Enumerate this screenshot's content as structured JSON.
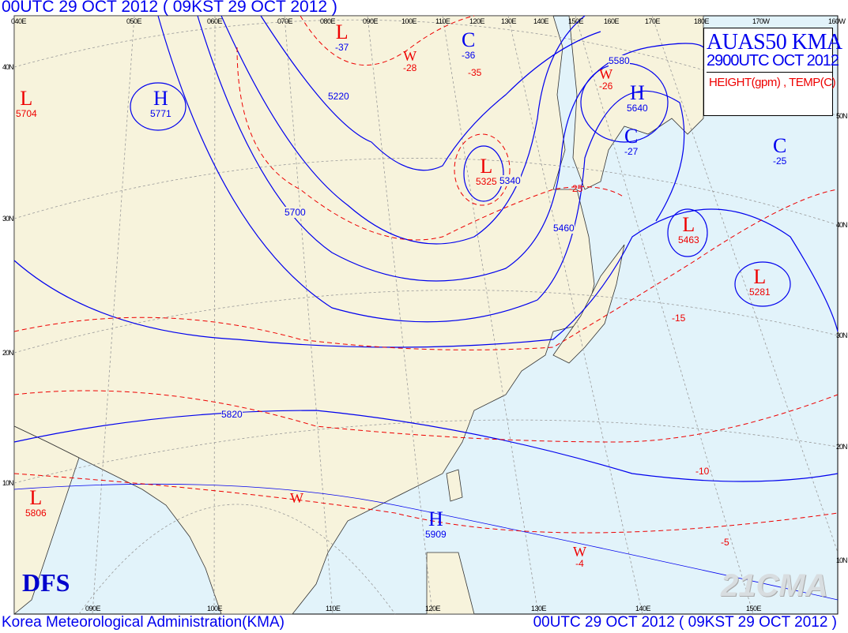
{
  "header": {
    "title": "00UTC 29 OCT 2012 ( 09KST 29 OCT 2012 )"
  },
  "title_box": {
    "product": "AUAS50  KMA",
    "valid": "2900UTC OCT 2012",
    "fields": "HEIGHT(gpm) , TEMP(C)"
  },
  "footer": {
    "agency": "Korea Meteorological Administration(KMA)",
    "time": "00UTC 29 OCT 2012 ( 09KST 29 OCT 2012 )"
  },
  "logo": "DFS",
  "watermark": "21CMA",
  "colors": {
    "land": "#f7f3dc",
    "ocean": "#e2f3fa",
    "height_contour": "#0000ee",
    "temp_contour": "#ee0000"
  },
  "lon_labels_top": [
    "040E",
    "050E",
    "060E",
    "070E",
    "080E",
    "090E",
    "100E",
    "110E",
    "120E",
    "130E",
    "140E",
    "150E",
    "160E",
    "170E",
    "180E",
    "170W",
    "160W"
  ],
  "lon_labels_bottom": [
    "090E",
    "100E",
    "110E",
    "120E",
    "130E",
    "140E",
    "150E"
  ],
  "lat_labels_right": [
    "50N",
    "40N",
    "30N",
    "20N",
    "10N"
  ],
  "lat_labels_left": [
    "40N",
    "30N",
    "20N",
    "10N"
  ],
  "systems": [
    {
      "type": "L",
      "value": "-37",
      "color": "#ee0000",
      "sub_color": "#0000ee"
    },
    {
      "type": "C",
      "value": "-36",
      "color": "#0000ee",
      "sub_color": "#0000ee"
    },
    {
      "type": "W",
      "value": "-28",
      "color": "#ee0000",
      "sub_color": "#ee0000"
    },
    {
      "type": "H",
      "value": "5771",
      "color": "#0000ee",
      "sub_color": "#0000ee"
    },
    {
      "type": "L",
      "value": "5704",
      "color": "#ee0000",
      "sub_color": "#ee0000"
    },
    {
      "type": "W",
      "value": "-26",
      "color": "#ee0000",
      "sub_color": "#ee0000"
    },
    {
      "type": "H",
      "value": "5640",
      "color": "#0000ee",
      "sub_color": "#0000ee"
    },
    {
      "type": "C",
      "value": "-27",
      "color": "#0000ee",
      "sub_color": "#0000ee"
    },
    {
      "type": "C",
      "value": "-25",
      "color": "#0000ee",
      "sub_color": "#0000ee"
    },
    {
      "type": "L",
      "value": "5325",
      "color": "#ee0000",
      "sub_color": "#ee0000"
    },
    {
      "type": "L",
      "value": "5463",
      "color": "#ee0000",
      "sub_color": "#ee0000"
    },
    {
      "type": "L",
      "value": "5281",
      "color": "#ee0000",
      "sub_color": "#ee0000"
    },
    {
      "type": "L",
      "value": "5806",
      "color": "#ee0000",
      "sub_color": "#ee0000"
    },
    {
      "type": "H",
      "value": "5909",
      "color": "#0000ee",
      "sub_color": "#0000ee"
    },
    {
      "type": "W",
      "value": "",
      "color": "#ee0000",
      "sub_color": "#ee0000"
    },
    {
      "type": "W",
      "value": "-4",
      "color": "#ee0000",
      "sub_color": "#ee0000"
    }
  ],
  "height_contours": [
    "5220",
    "5340",
    "5460",
    "5580",
    "5700",
    "5820"
  ],
  "temp_contours": [
    "-35",
    "-25",
    "-15",
    "-10",
    "-5"
  ]
}
